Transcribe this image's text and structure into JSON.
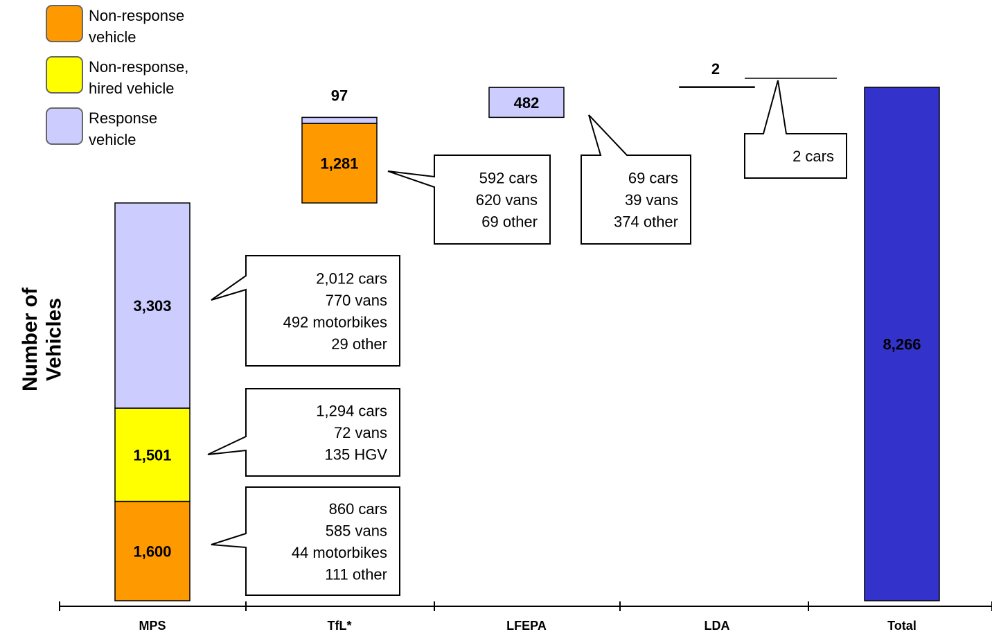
{
  "chart_data": {
    "type": "bar",
    "subtype": "waterfall-stacked",
    "ylabel": "Number of Vehicles",
    "categories": [
      "MPS",
      "TfL*",
      "LFEPA",
      "LDA",
      "Total"
    ],
    "series": [
      {
        "name": "Non-response vehicle",
        "color": "#FF9900",
        "values": [
          1600,
          1281,
          0,
          0,
          null
        ]
      },
      {
        "name": "Non-response, hired vehicle",
        "color": "#FFFF00",
        "values": [
          1501,
          0,
          0,
          0,
          null
        ]
      },
      {
        "name": "Response vehicle",
        "color": "#CCCCFF",
        "values": [
          3303,
          97,
          482,
          2,
          null
        ]
      }
    ],
    "total": {
      "value": 8266,
      "label": "8,266",
      "color": "#3333CC"
    },
    "segments": [
      {
        "category": "MPS",
        "series": "Non-response vehicle",
        "value": 1600,
        "label": "1,600"
      },
      {
        "category": "MPS",
        "series": "Non-response, hired vehicle",
        "value": 1501,
        "label": "1,501"
      },
      {
        "category": "MPS",
        "series": "Response vehicle",
        "value": 3303,
        "label": "3,303"
      },
      {
        "category": "TfL*",
        "series": "Non-response vehicle",
        "value": 1281,
        "label": "1,281"
      },
      {
        "category": "TfL*",
        "series": "Response vehicle",
        "value": 97,
        "label": "97"
      },
      {
        "category": "LFEPA",
        "series": "Response vehicle",
        "value": 482,
        "label": "482"
      },
      {
        "category": "LDA",
        "series": "Response vehicle",
        "value": 2,
        "label": "2"
      }
    ],
    "callouts": [
      {
        "category": "MPS",
        "series": "Response vehicle",
        "lines": [
          "2,012 cars",
          "770 vans",
          "492 motorbikes",
          "29 other"
        ]
      },
      {
        "category": "MPS",
        "series": "Non-response, hired vehicle",
        "lines": [
          "1,294 cars",
          "72 vans",
          "135 HGV"
        ]
      },
      {
        "category": "MPS",
        "series": "Non-response vehicle",
        "lines": [
          "860 cars",
          "585 vans",
          "44 motorbikes",
          "111 other"
        ]
      },
      {
        "category": "TfL*",
        "series": "Non-response vehicle",
        "lines": [
          "592 cars",
          "620 vans",
          "69 other"
        ]
      },
      {
        "category": "LFEPA",
        "series": "Response vehicle",
        "lines": [
          "69 cars",
          "39 vans",
          "374 other"
        ]
      },
      {
        "category": "LDA",
        "series": "Response vehicle",
        "lines": [
          "2 cars"
        ]
      }
    ],
    "legend": {
      "position": "top-left",
      "entries": [
        {
          "lines": [
            "Non-response",
            "vehicle"
          ],
          "color": "#FF9900"
        },
        {
          "lines": [
            "Non-response,",
            "hired vehicle"
          ],
          "color": "#FFFF00"
        },
        {
          "lines": [
            "Response",
            "vehicle"
          ],
          "color": "#CCCCFF"
        }
      ]
    },
    "grid": false,
    "ylim": [
      0,
      8266
    ]
  }
}
